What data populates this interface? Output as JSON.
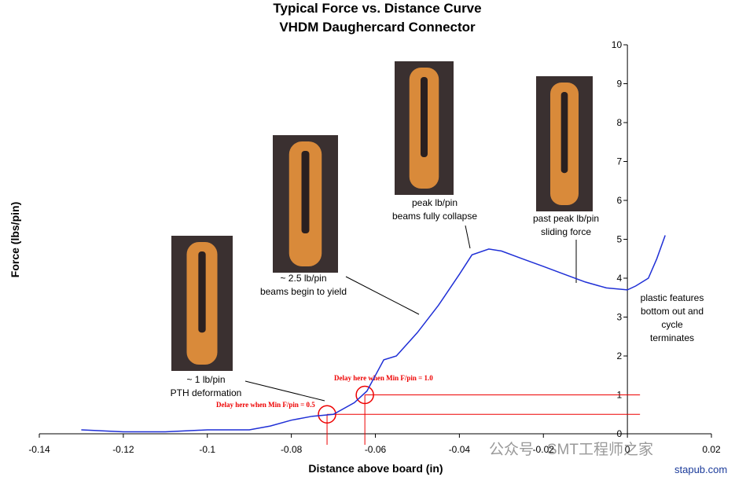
{
  "chart_data": {
    "type": "line",
    "title": [
      "Typical Force vs. Distance Curve",
      "VHDM Daughercard Connector"
    ],
    "x_label": "Distance above board (in)",
    "y_label": "Force (lbs/pin)",
    "xlim": [
      -0.14,
      0.02
    ],
    "xticks": [
      -0.14,
      -0.12,
      -0.1,
      -0.08,
      -0.06,
      -0.04,
      -0.02,
      0,
      0.02
    ],
    "ylim": [
      0,
      10
    ],
    "yticks": [
      0,
      1,
      2,
      3,
      4,
      5,
      6,
      7,
      8,
      9,
      10
    ],
    "color": "#1f2fd6",
    "x": [
      -0.13,
      -0.12,
      -0.11,
      -0.1,
      -0.09,
      -0.085,
      -0.08,
      -0.075,
      -0.07,
      -0.065,
      -0.062,
      -0.06,
      -0.058,
      -0.055,
      -0.05,
      -0.045,
      -0.04,
      -0.037,
      -0.033,
      -0.03,
      -0.025,
      -0.02,
      -0.015,
      -0.01,
      -0.005,
      0,
      0.002,
      0.005,
      0.007,
      0.009
    ],
    "values": [
      0.1,
      0.05,
      0.05,
      0.1,
      0.1,
      0.2,
      0.35,
      0.45,
      0.5,
      0.8,
      1.1,
      1.5,
      1.9,
      2.0,
      2.6,
      3.3,
      4.1,
      4.6,
      4.75,
      4.7,
      4.5,
      4.3,
      4.1,
      3.9,
      3.75,
      3.7,
      3.8,
      4.0,
      4.5,
      5.1
    ],
    "annotations": [
      {
        "lines": [
          "~ 1 lb/pin",
          "PTH deformation"
        ]
      },
      {
        "lines": [
          "~ 2.5 lb/pin",
          "beams begin to yield"
        ]
      },
      {
        "lines": [
          "peak lb/pin",
          "beams fully collapse"
        ]
      },
      {
        "lines": [
          "past peak lb/pin",
          "sliding force"
        ]
      },
      {
        "lines": [
          "plastic features",
          "bottom out and",
          "cycle",
          "terminates"
        ]
      }
    ],
    "thresholds": [
      {
        "label": "Delay here when Min F/pin = 1.0",
        "x": -0.0625,
        "y": 1.0
      },
      {
        "label": "Delay here when Min F/pin = 0.5",
        "x": -0.0715,
        "y": 0.5
      }
    ]
  },
  "watermark": [
    "公众号 · SMT工程师之家",
    "stapub.com"
  ]
}
